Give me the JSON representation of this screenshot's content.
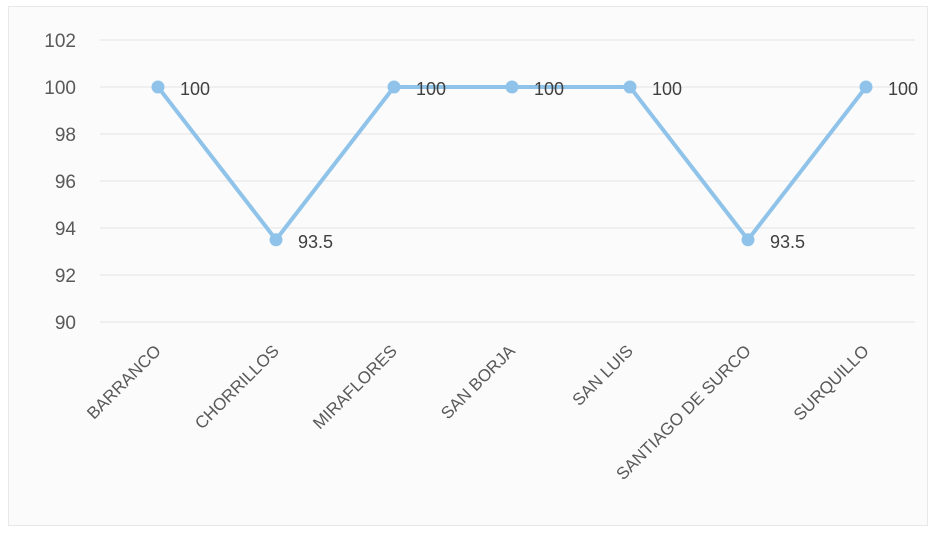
{
  "chart_data": {
    "type": "line",
    "title": "",
    "xlabel": "",
    "ylabel": "",
    "categories": [
      "BARRANCO",
      "CHORRILLOS",
      "MIRAFLORES",
      "SAN BORJA",
      "SAN LUIS",
      "SANTIAGO DE SURCO",
      "SURQUILLO"
    ],
    "series": [
      {
        "values": [
          100,
          93.5,
          100,
          100,
          100,
          93.5,
          100
        ],
        "labels": [
          "100",
          "93.5",
          "100",
          "100",
          "100",
          "93.5",
          "100"
        ],
        "color": "#8fc3ea"
      }
    ],
    "ylim": [
      90,
      102
    ],
    "yticks": [
      90,
      92,
      94,
      96,
      98,
      100,
      102
    ],
    "grid": true,
    "legend": "none",
    "gridline_color": "#e3e3e3"
  }
}
